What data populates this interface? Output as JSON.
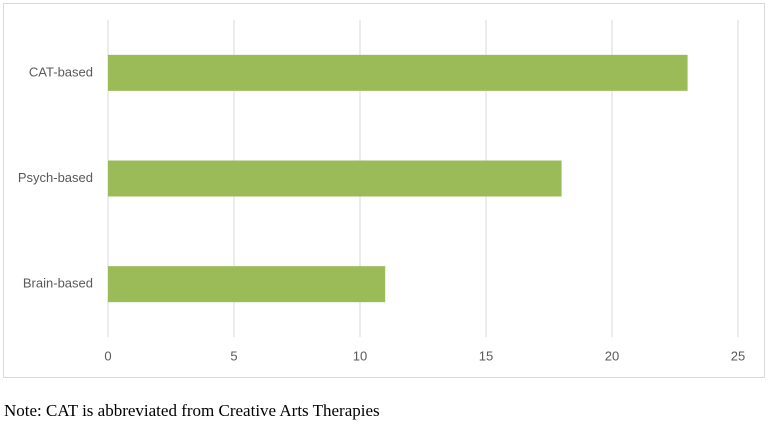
{
  "chart_data": {
    "type": "bar",
    "orientation": "horizontal",
    "categories": [
      "CAT-based",
      "Psych-based",
      "Brain-based"
    ],
    "values": [
      23,
      18,
      11
    ],
    "color": "#9bbb59",
    "xlim": [
      0,
      25
    ],
    "xticks": [
      0,
      5,
      10,
      15,
      20,
      25
    ],
    "grid": true,
    "note": "Note: CAT is abbreviated from Creative Arts Therapies"
  }
}
